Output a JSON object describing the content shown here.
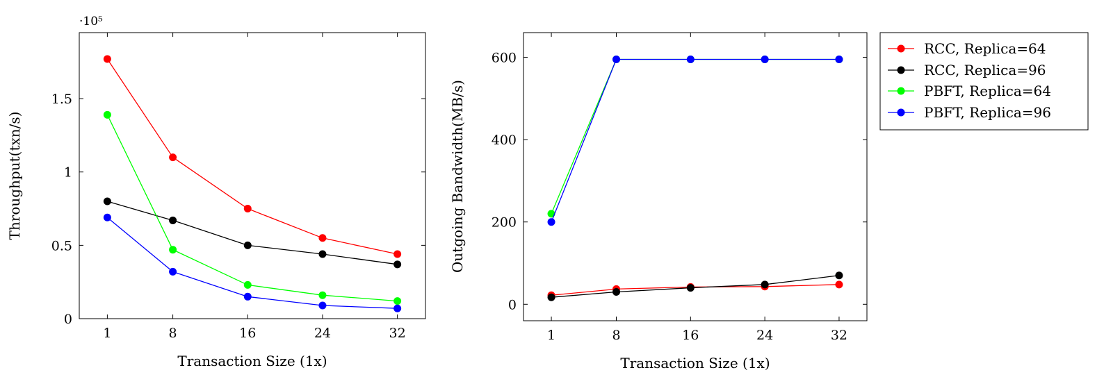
{
  "chart_data": [
    {
      "type": "line",
      "xlabel": "Transaction Size (1x)",
      "ylabel": "Throughput(txn/s)",
      "y_multiplier_label": "·10⁵",
      "x": [
        1,
        8,
        16,
        24,
        32
      ],
      "xticks": [
        "1",
        "8",
        "16",
        "24",
        "32"
      ],
      "xlim": [
        -2,
        35
      ],
      "ylim": [
        0,
        1.95
      ],
      "yticks": [
        0,
        0.5,
        1,
        1.5
      ],
      "ytick_labels": [
        "0",
        "0.5",
        "1",
        "1.5"
      ],
      "grid": false,
      "series": [
        {
          "name": "RCC, Replica=64",
          "color": "#ff0000",
          "values": [
            1.77,
            1.1,
            0.75,
            0.55,
            0.44
          ]
        },
        {
          "name": "RCC, Replica=96",
          "color": "#000000",
          "values": [
            0.8,
            0.67,
            0.5,
            0.44,
            0.37
          ]
        },
        {
          "name": "PBFT, Replica=64",
          "color": "#00ff00",
          "values": [
            1.39,
            0.47,
            0.23,
            0.16,
            0.12
          ]
        },
        {
          "name": "PBFT, Replica=96",
          "color": "#0000ff",
          "values": [
            0.69,
            0.32,
            0.15,
            0.09,
            0.07
          ]
        }
      ]
    },
    {
      "type": "line",
      "xlabel": "Transaction Size (1x)",
      "ylabel": "Outgoing Bandwidth(MB/s)",
      "x": [
        1,
        8,
        16,
        24,
        32
      ],
      "xticks": [
        "1",
        "8",
        "16",
        "24",
        "32"
      ],
      "xlim": [
        -2,
        35
      ],
      "ylim": [
        -40,
        660
      ],
      "yticks": [
        0,
        200,
        400,
        600
      ],
      "ytick_labels": [
        "0",
        "200",
        "400",
        "600"
      ],
      "grid": false,
      "legend_position": "outside top-right",
      "series": [
        {
          "name": "RCC, Replica=64",
          "color": "#ff0000",
          "values": [
            22,
            37,
            42,
            43,
            48
          ]
        },
        {
          "name": "RCC, Replica=96",
          "color": "#000000",
          "values": [
            17,
            30,
            40,
            48,
            70
          ]
        },
        {
          "name": "PBFT, Replica=64",
          "color": "#00ff00",
          "values": [
            220,
            595,
            595,
            595,
            595
          ]
        },
        {
          "name": "PBFT, Replica=96",
          "color": "#0000ff",
          "values": [
            200,
            595,
            595,
            595,
            595
          ]
        }
      ]
    }
  ]
}
